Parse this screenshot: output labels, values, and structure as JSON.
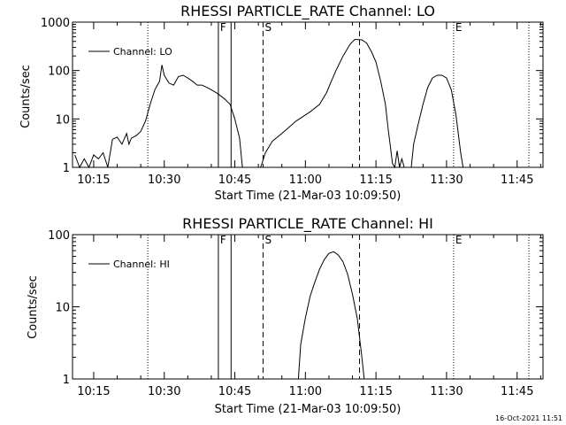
{
  "stamp": "16-Oct-2021 11:51",
  "x_ticks": [
    "10:15",
    "10:30",
    "10:45",
    "11:00",
    "11:15",
    "11:30",
    "11:45"
  ],
  "x_tick_minutes": [
    15,
    30,
    45,
    60,
    75,
    90,
    105
  ],
  "markers": [
    {
      "label": "F",
      "minute": 41.5,
      "style": "solid"
    },
    {
      "label": "",
      "minute": 44.2,
      "style": "solid"
    },
    {
      "label": "S",
      "minute": 51.0,
      "style": "dashed"
    },
    {
      "label": "",
      "minute": 71.5,
      "style": "dashed"
    },
    {
      "label": "",
      "minute": 26.5,
      "style": "dotted"
    },
    {
      "label": "E",
      "minute": 91.5,
      "style": "dotted"
    },
    {
      "label": "",
      "minute": 107.5,
      "style": "dotted"
    }
  ],
  "chart_data": [
    {
      "type": "line",
      "title": "RHESSI PARTICLE_RATE Channel: LO",
      "xlabel": "Start Time (21-Mar-03 10:09:50)",
      "ylabel": "Counts/sec",
      "xlim": [
        10.5,
        110.5
      ],
      "ylim": [
        1,
        1000
      ],
      "yscale": "log",
      "y_ticks": [
        "1",
        "10",
        "100",
        "1000"
      ],
      "y_tick_values": [
        1,
        10,
        100,
        1000
      ],
      "legend": "Channel: LO",
      "legend_placement": "top-left",
      "series": [
        {
          "name": "Channel: LO",
          "segments": [
            [
              [
                11,
                1.8
              ],
              [
                12,
                1
              ],
              [
                13,
                1.5
              ],
              [
                14,
                1
              ],
              [
                15,
                1.8
              ],
              [
                16,
                1.5
              ],
              [
                17,
                2
              ],
              [
                18,
                1
              ],
              [
                19,
                3.8
              ],
              [
                20,
                4.2
              ],
              [
                21,
                3
              ],
              [
                22,
                5
              ],
              [
                22.5,
                3
              ],
              [
                23,
                4
              ],
              [
                24,
                4.5
              ],
              [
                25,
                5.5
              ],
              [
                26,
                9
              ],
              [
                27,
                20
              ],
              [
                28,
                40
              ],
              [
                29,
                60
              ],
              [
                29.5,
                130
              ],
              [
                30,
                80
              ],
              [
                31,
                55
              ],
              [
                32,
                50
              ],
              [
                33,
                75
              ],
              [
                34,
                80
              ],
              [
                35,
                70
              ],
              [
                36,
                60
              ],
              [
                37,
                50
              ],
              [
                38,
                50
              ],
              [
                39,
                45
              ],
              [
                40,
                40
              ],
              [
                41,
                35
              ],
              [
                42,
                30
              ],
              [
                43,
                25
              ],
              [
                44,
                20
              ],
              [
                45,
                10
              ],
              [
                46,
                4
              ],
              [
                46.6,
                1
              ]
            ],
            [
              [
                50.5,
                1
              ],
              [
                51.5,
                2
              ],
              [
                53,
                3.5
              ],
              [
                55,
                5
              ],
              [
                58,
                9
              ],
              [
                61,
                14
              ],
              [
                63,
                20
              ],
              [
                64.5,
                35
              ],
              [
                65.5,
                60
              ],
              [
                66.5,
                100
              ],
              [
                68,
                200
              ],
              [
                69.5,
                350
              ],
              [
                70.5,
                440
              ],
              [
                72,
                430
              ],
              [
                73,
                370
              ],
              [
                74,
                250
              ],
              [
                75,
                150
              ],
              [
                76,
                60
              ],
              [
                77,
                20
              ],
              [
                77.6,
                6
              ],
              [
                78,
                3
              ],
              [
                78.5,
                1.2
              ],
              [
                79,
                1
              ],
              [
                79.5,
                2.2
              ],
              [
                80,
                1
              ],
              [
                80.5,
                1.5
              ],
              [
                81,
                1
              ]
            ],
            [
              [
                82.5,
                1
              ],
              [
                83,
                3
              ],
              [
                84,
                8
              ],
              [
                85,
                20
              ],
              [
                86,
                45
              ],
              [
                87,
                70
              ],
              [
                88,
                80
              ],
              [
                89,
                80
              ],
              [
                90,
                70
              ],
              [
                91,
                40
              ],
              [
                92,
                12
              ],
              [
                93,
                2
              ],
              [
                93.5,
                1
              ]
            ]
          ]
        }
      ]
    },
    {
      "type": "line",
      "title": "RHESSI PARTICLE_RATE Channel: HI",
      "xlabel": "Start Time (21-Mar-03 10:09:50)",
      "ylabel": "Counts/sec",
      "xlim": [
        10.5,
        110.5
      ],
      "ylim": [
        1,
        100
      ],
      "yscale": "log",
      "y_ticks": [
        "1",
        "10",
        "100"
      ],
      "y_tick_values": [
        1,
        10,
        100
      ],
      "legend": "Channel: HI",
      "legend_placement": "top-left",
      "series": [
        {
          "name": "Channel: HI",
          "segments": [
            [
              [
                58.5,
                1
              ],
              [
                59,
                3
              ],
              [
                60,
                7
              ],
              [
                61,
                14
              ],
              [
                62,
                22
              ],
              [
                63,
                33
              ],
              [
                64,
                45
              ],
              [
                65,
                55
              ],
              [
                66,
                58
              ],
              [
                67,
                52
              ],
              [
                68,
                42
              ],
              [
                69,
                28
              ],
              [
                70,
                15
              ],
              [
                71,
                7
              ],
              [
                72,
                2
              ],
              [
                72.5,
                1
              ]
            ]
          ]
        }
      ]
    }
  ]
}
